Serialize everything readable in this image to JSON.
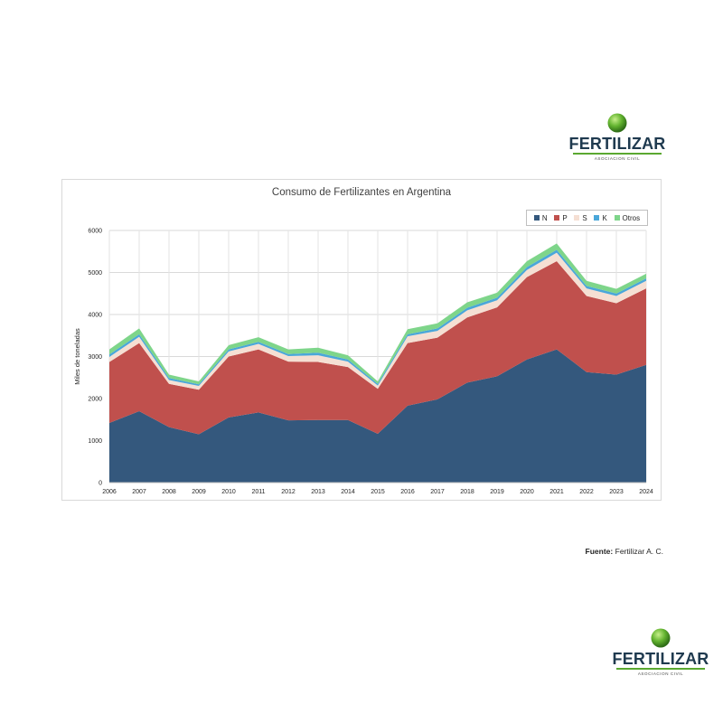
{
  "logo": {
    "name": "FERTILIZAR",
    "subtitle": "ASOCIACION CIVIL"
  },
  "source": {
    "label": "Fuente:",
    "text": "Fertilizar A. C."
  },
  "chart_data": {
    "type": "area",
    "stacked": true,
    "title": "Consumo de Fertilizantes en Argentina",
    "xlabel": "",
    "ylabel": "Miles de toneladas",
    "ylim": [
      0,
      6000
    ],
    "yticks": [
      "0",
      "1000",
      "2000",
      "3000",
      "4000",
      "5000",
      "6000"
    ],
    "grid": true,
    "legend_position": "top-right",
    "x": [
      "2006",
      "2007",
      "2008",
      "2009",
      "2010",
      "2011",
      "2012",
      "2013",
      "2014",
      "2015",
      "2016",
      "2017",
      "2018",
      "2019",
      "2020",
      "2021",
      "2022",
      "2023",
      "2024"
    ],
    "series": [
      {
        "name": "N",
        "color": "#34587d",
        "values": [
          1420,
          1700,
          1320,
          1150,
          1550,
          1670,
          1480,
          1490,
          1490,
          1160,
          1830,
          1980,
          2380,
          2530,
          2930,
          3170,
          2630,
          2570,
          2800
        ]
      },
      {
        "name": "P",
        "color": "#c0504d",
        "values": [
          1450,
          1620,
          1030,
          1060,
          1450,
          1500,
          1400,
          1380,
          1260,
          1070,
          1490,
          1470,
          1550,
          1640,
          1960,
          2100,
          1810,
          1700,
          1820
        ]
      },
      {
        "name": "S",
        "color": "#f5dfd3",
        "values": [
          120,
          150,
          90,
          90,
          120,
          130,
          130,
          160,
          130,
          80,
          160,
          160,
          170,
          170,
          170,
          200,
          180,
          170,
          180
        ]
      },
      {
        "name": "K",
        "color": "#4aa7d9",
        "values": [
          60,
          60,
          50,
          40,
          50,
          50,
          50,
          60,
          50,
          40,
          50,
          60,
          60,
          60,
          70,
          70,
          60,
          60,
          60
        ]
      },
      {
        "name": "Otros",
        "color": "#7ed58a",
        "values": [
          120,
          140,
          80,
          70,
          100,
          110,
          110,
          120,
          100,
          60,
          120,
          120,
          130,
          120,
          140,
          150,
          120,
          110,
          110
        ]
      }
    ]
  }
}
